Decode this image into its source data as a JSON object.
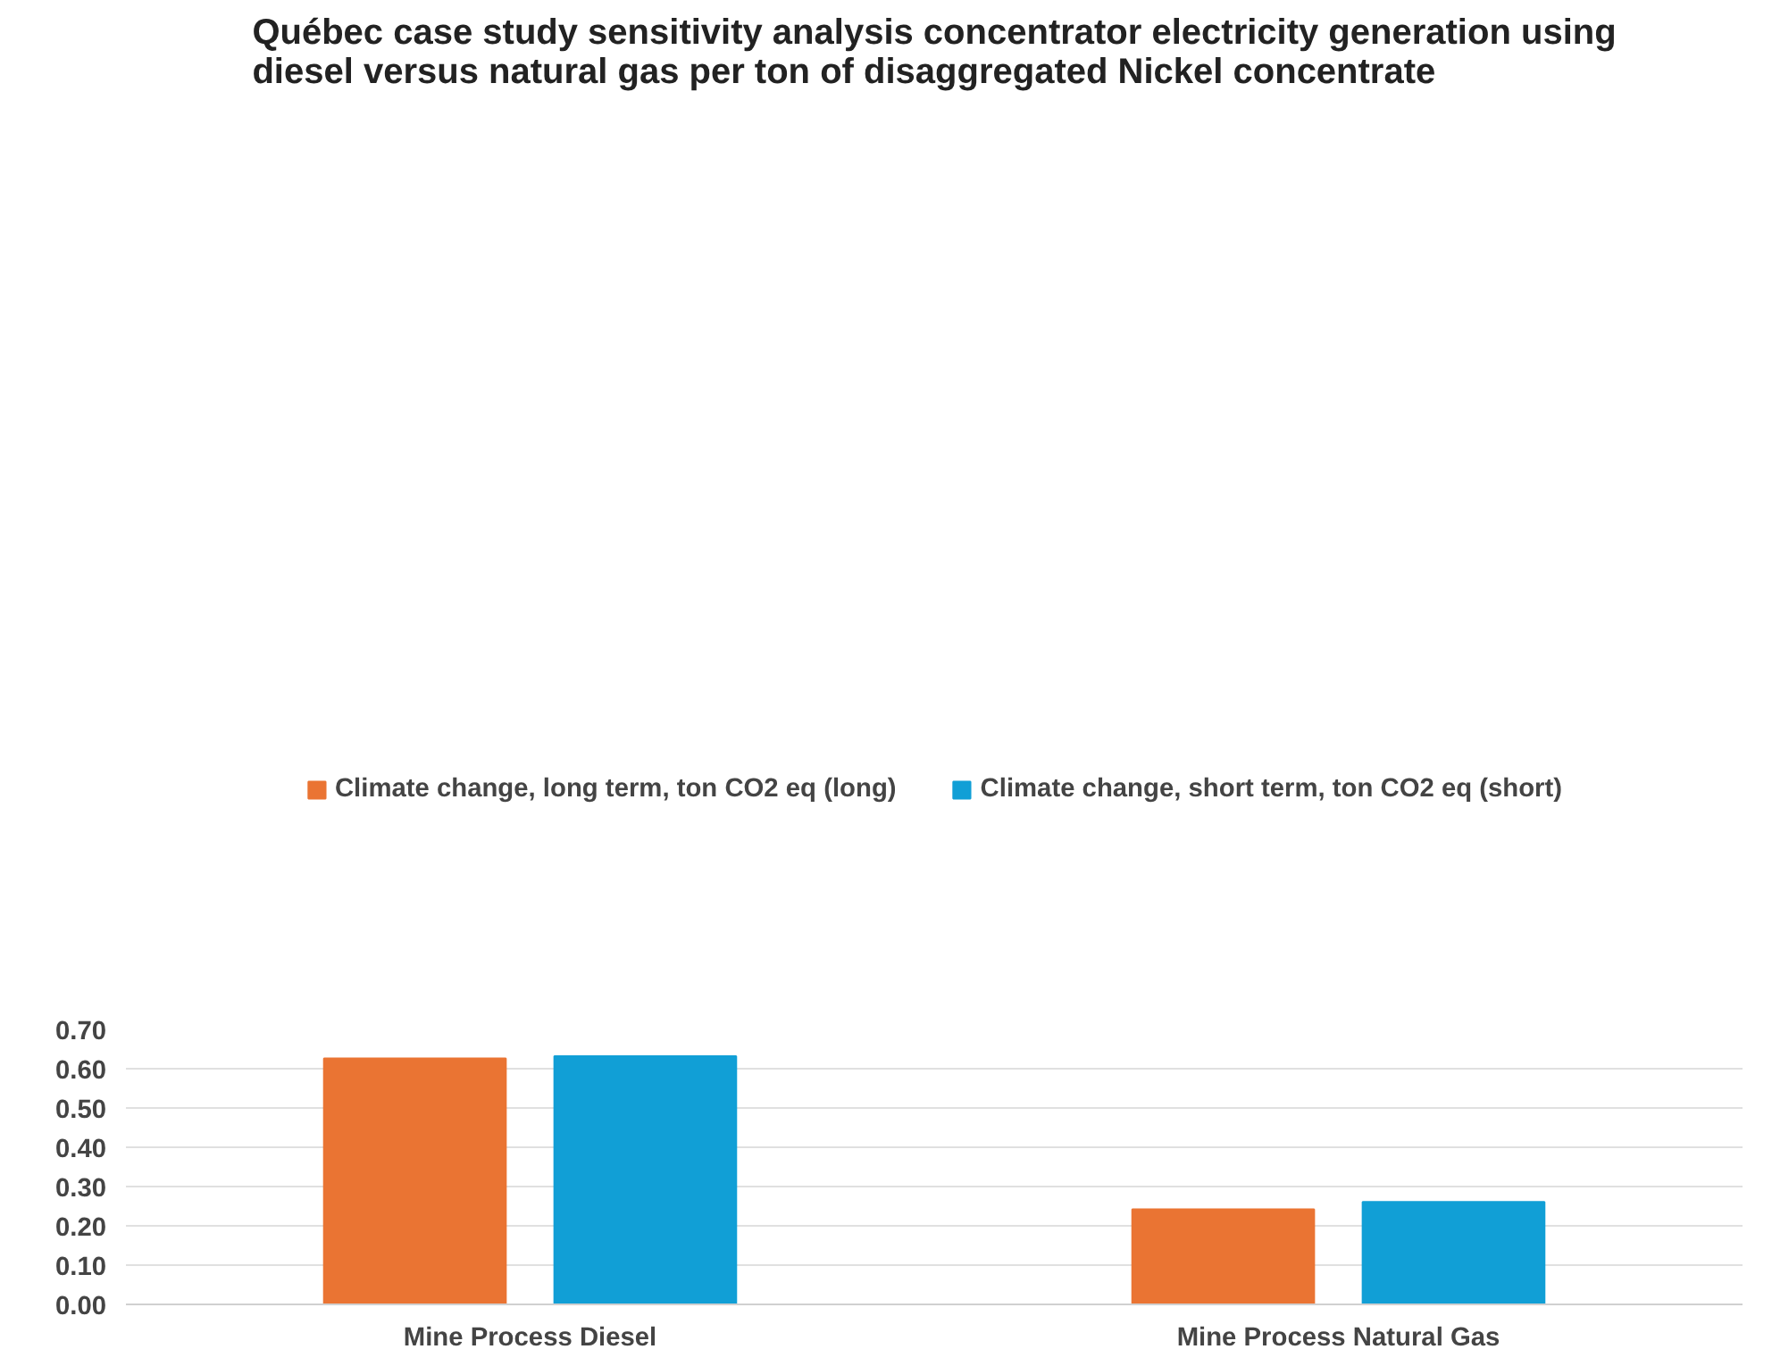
{
  "chart_data": {
    "type": "bar",
    "title": "Québec case study sensitivity analysis concentrator electricity generation using\ndiesel versus natural gas per ton of disaggregated Nickel concentrate",
    "categories": [
      "Mine Process Diesel",
      "Mine Process Natural Gas"
    ],
    "series": [
      {
        "name": "Climate change, long term, ton CO2 eq (long)",
        "color": "#ea7433",
        "values": [
          0.626,
          0.242
        ]
      },
      {
        "name": "Climate change, short term, ton CO2 eq (short)",
        "color": "#119fd6",
        "values": [
          0.632,
          0.261
        ]
      }
    ],
    "ylim": [
      0,
      0.7
    ],
    "yticks": [
      {
        "value": 0,
        "label": "0.00"
      },
      {
        "value": 0.1,
        "label": "0.10"
      },
      {
        "value": 0.2,
        "label": "0.20"
      },
      {
        "value": 0.3,
        "label": "0.30"
      },
      {
        "value": 0.4,
        "label": "0.40"
      },
      {
        "value": 0.5,
        "label": "0.50"
      },
      {
        "value": 0.6,
        "label": "0.60"
      },
      {
        "value": 0.7,
        "label": "0.70"
      }
    ],
    "grid": "y",
    "legend": "top"
  }
}
